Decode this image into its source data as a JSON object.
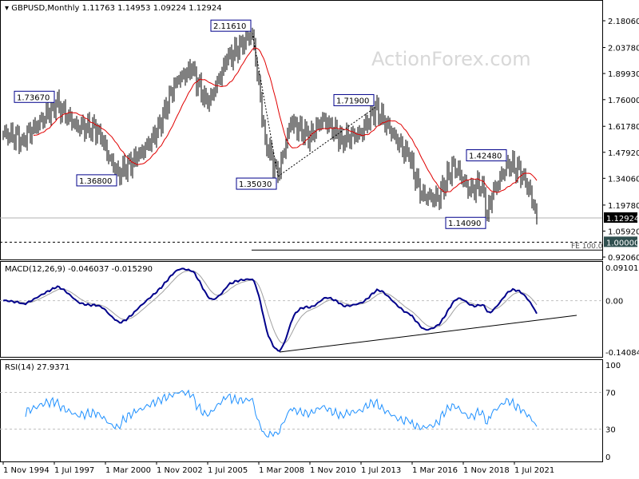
{
  "header": {
    "symbol": "GBPUSD,Monthly",
    "ohlc": "1.11763 1.14953 1.09224 1.12924"
  },
  "watermark": "ActionForex.com",
  "colors": {
    "candles": "#000000",
    "ma": "#e00000",
    "macd": "#00008b",
    "signal": "#a0a0a0",
    "rsi": "#1e90ff",
    "label_border": "#00008b"
  },
  "chart_data": [
    {
      "type": "ohlc",
      "title": "GBPUSD,Monthly",
      "x_ticks": [
        "1 Nov 1994",
        "1 Jul 1997",
        "1 Mar 2000",
        "1 Nov 2002",
        "1 Jul 2005",
        "1 Mar 2008",
        "1 Nov 2010",
        "1 Jul 2013",
        "1 Mar 2016",
        "1 Nov 2018",
        "1 Jul 2021"
      ],
      "y_ticks": [
        "2.18060",
        "2.03780",
        "1.89930",
        "1.76000",
        "1.61780",
        "1.47920",
        "1.34060",
        "1.19780",
        "1.05920",
        "0.92060"
      ],
      "ylim": [
        0.9206,
        2.1806
      ],
      "last_price": "1.12924",
      "level_label": "1.00000",
      "fe_label": "FE 100.0",
      "fe_level": 0.958,
      "swing_points_month_price": [
        [
          0,
          1.58
        ],
        [
          12,
          1.55
        ],
        [
          22,
          1.63
        ],
        [
          33,
          1.7367
        ],
        [
          46,
          1.62
        ],
        [
          60,
          1.6
        ],
        [
          66,
          1.45
        ],
        [
          72,
          1.368
        ],
        [
          84,
          1.45
        ],
        [
          96,
          1.58
        ],
        [
          108,
          1.86
        ],
        [
          118,
          1.92
        ],
        [
          128,
          1.73
        ],
        [
          140,
          1.97
        ],
        [
          156,
          2.1161
        ],
        [
          164,
          1.55
        ],
        [
          172,
          1.3503
        ],
        [
          180,
          1.64
        ],
        [
          192,
          1.56
        ],
        [
          200,
          1.66
        ],
        [
          212,
          1.55
        ],
        [
          224,
          1.58
        ],
        [
          233,
          1.719
        ],
        [
          242,
          1.6
        ],
        [
          254,
          1.45
        ],
        [
          262,
          1.25
        ],
        [
          272,
          1.23
        ],
        [
          282,
          1.42
        ],
        [
          292,
          1.27
        ],
        [
          300,
          1.32
        ],
        [
          303,
          1.1409
        ],
        [
          306,
          1.25
        ],
        [
          316,
          1.4248
        ],
        [
          326,
          1.36
        ],
        [
          332,
          1.2
        ],
        [
          334,
          1.12924
        ]
      ],
      "annotations": [
        {
          "text": "1.73670",
          "m": 33,
          "p": 1.7367
        },
        {
          "text": "1.36800",
          "m": 72,
          "p": 1.368
        },
        {
          "text": "2.11610",
          "m": 156,
          "p": 2.1161
        },
        {
          "text": "1.35030",
          "m": 172,
          "p": 1.3503
        },
        {
          "text": "1.71900",
          "m": 233,
          "p": 1.719
        },
        {
          "text": "1.14090",
          "m": 303,
          "p": 1.1409
        },
        {
          "text": "1.42480",
          "m": 316,
          "p": 1.4248
        }
      ]
    },
    {
      "type": "line",
      "title": "MACD(12,26,9) -0.046037 -0.015290",
      "y_ticks": [
        "0.091015",
        "0.00",
        "-0.140843"
      ],
      "ylim": [
        -0.140843,
        0.091015
      ]
    },
    {
      "type": "line",
      "title": "RSI(14) 27.9371",
      "y_ticks": [
        "100",
        "70",
        "30",
        "0"
      ],
      "ylim": [
        0,
        100
      ]
    }
  ]
}
